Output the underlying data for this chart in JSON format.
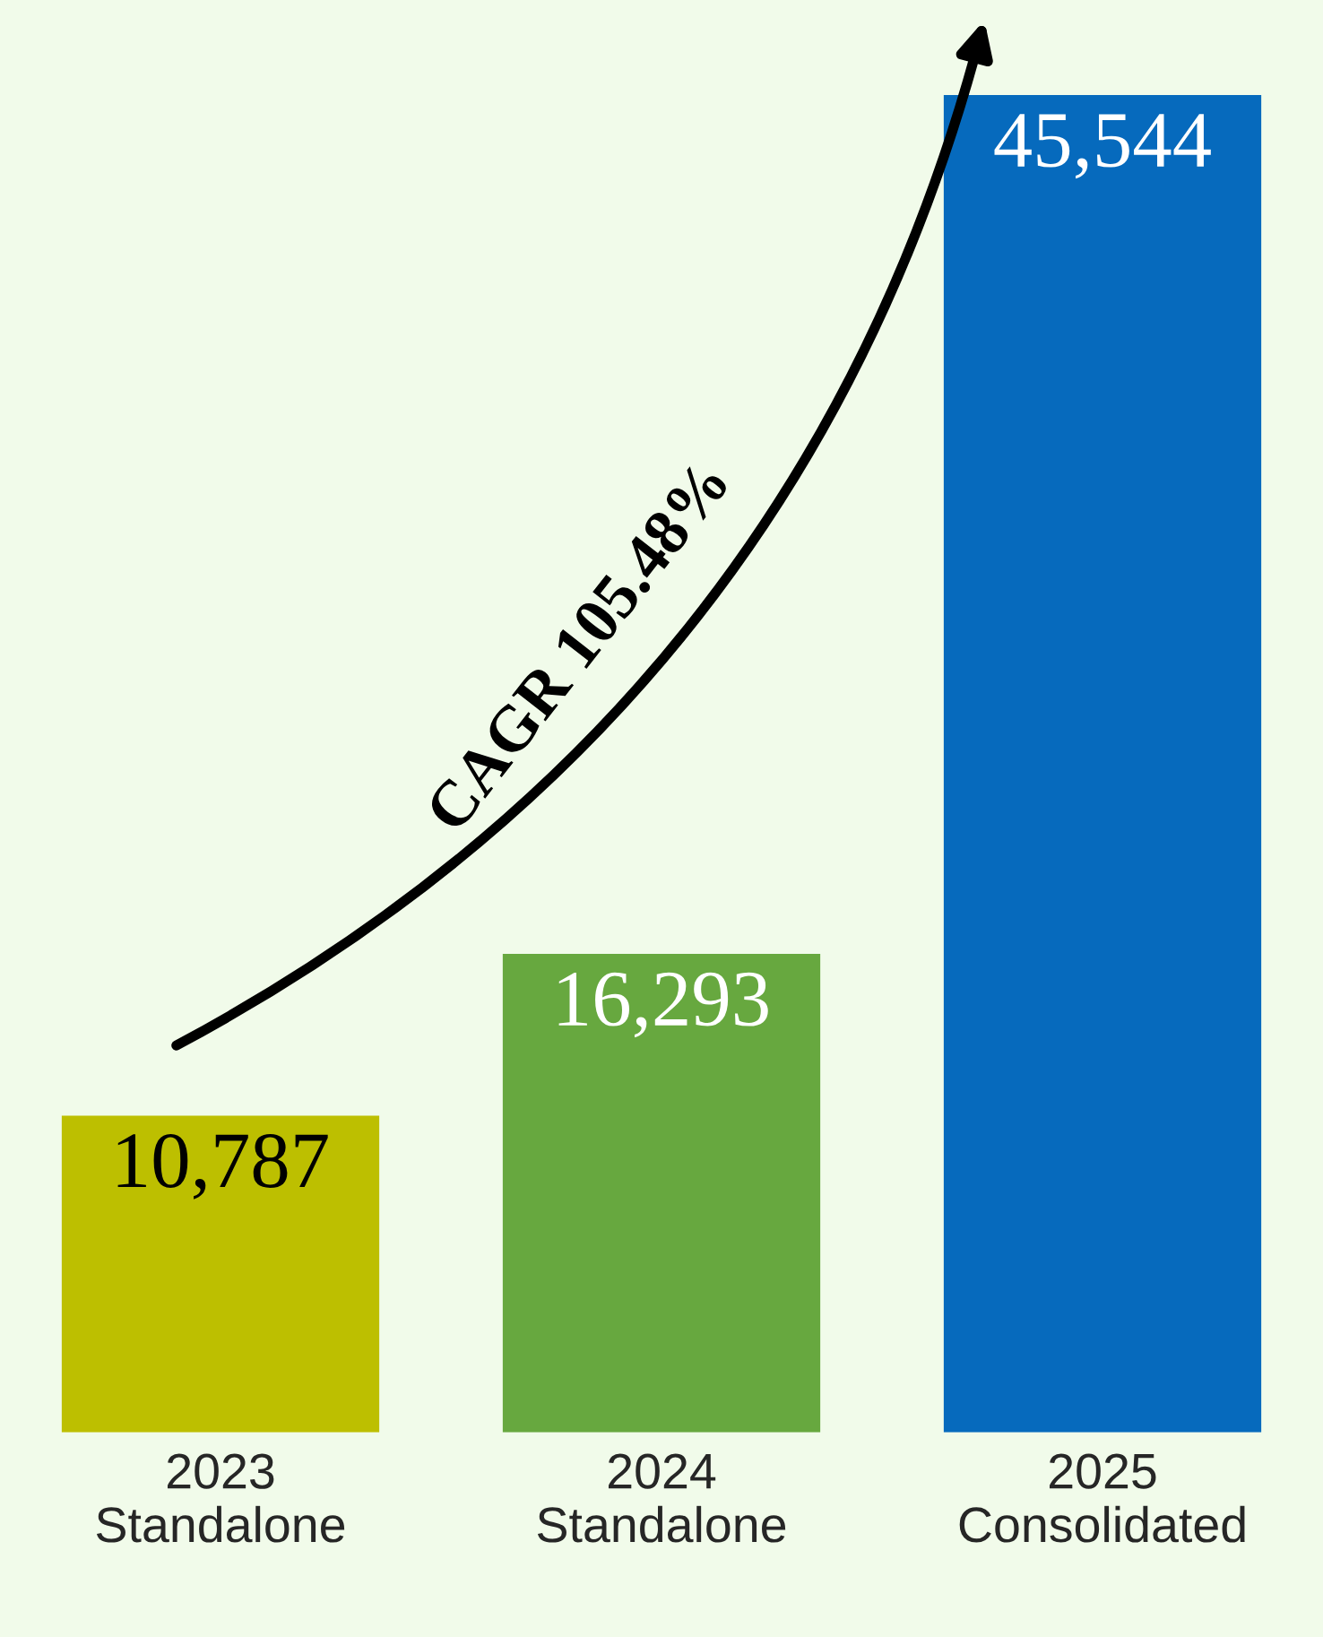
{
  "chart_data": {
    "type": "bar",
    "categories": [
      "2023\nStandalone",
      "2024\nStandalone",
      "2025\nConsolidated"
    ],
    "values": [
      10787,
      16293,
      45544
    ],
    "colors": [
      "#bdbf00",
      "#67a83f",
      "#066abd"
    ],
    "value_labels": [
      "10,787",
      "16,293",
      "45,544"
    ],
    "annotations": [
      "CAGR 105.48%"
    ],
    "grid": false,
    "legend": false
  }
}
